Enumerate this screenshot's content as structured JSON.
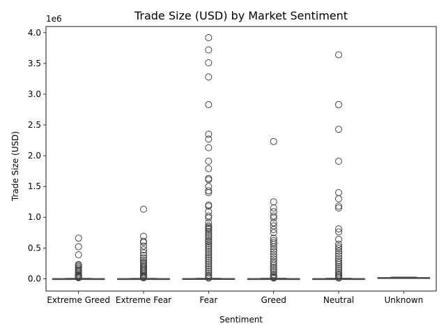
{
  "chart_data": {
    "type": "boxplot",
    "title": "Trade Size (USD) by Market Sentiment",
    "xlabel": "Sentiment",
    "ylabel": "Trade Size (USD)",
    "offset_label": "1e6",
    "ylim": [
      -0.2,
      4.1
    ],
    "yticks": [
      0.0,
      0.5,
      1.0,
      1.5,
      2.0,
      2.5,
      3.0,
      3.5,
      4.0
    ],
    "ytick_labels": [
      "0.0",
      "0.5",
      "1.0",
      "1.5",
      "2.0",
      "2.5",
      "3.0",
      "3.5",
      "4.0"
    ],
    "unit_scale": 1000000,
    "box_color": "#5b9bd5",
    "categories": [
      "Extreme Greed",
      "Extreme Fear",
      "Fear",
      "Greed",
      "Neutral",
      "Unknown"
    ],
    "boxes": [
      {
        "category": "Extreme Greed",
        "q1": 0.0,
        "median": 0.001,
        "q3": 0.003,
        "whisker_low": 0.0,
        "whisker_high": 0.007,
        "outliers": [
          0.66,
          0.52,
          0.39,
          0.23,
          0.22,
          0.2,
          0.18,
          0.16,
          0.14,
          0.12,
          0.1,
          0.08,
          0.06,
          0.05,
          0.04,
          0.03,
          0.02,
          0.015
        ]
      },
      {
        "category": "Extreme Fear",
        "q1": 0.0,
        "median": 0.001,
        "q3": 0.003,
        "whisker_low": 0.0,
        "whisker_high": 0.007,
        "outliers": [
          1.13,
          0.69,
          0.61,
          0.59,
          0.53,
          0.47,
          0.42,
          0.38,
          0.34,
          0.3,
          0.27,
          0.25,
          0.23,
          0.21,
          0.19,
          0.17,
          0.15,
          0.13,
          0.11,
          0.09,
          0.07,
          0.05,
          0.04,
          0.03,
          0.02,
          0.015
        ]
      },
      {
        "category": "Fear",
        "q1": 0.0,
        "median": 0.001,
        "q3": 0.004,
        "whisker_low": 0.0,
        "whisker_high": 0.009,
        "outliers": [
          3.92,
          3.72,
          3.51,
          3.28,
          2.83,
          2.35,
          2.27,
          2.13,
          1.91,
          1.79,
          1.63,
          1.61,
          1.5,
          1.43,
          1.4,
          1.2,
          1.18,
          1.09,
          1.02,
          0.99,
          0.91,
          0.86,
          0.84,
          0.82,
          0.8,
          0.77,
          0.74,
          0.71,
          0.68,
          0.65,
          0.62,
          0.6,
          0.57,
          0.54,
          0.51,
          0.48,
          0.45,
          0.42,
          0.39,
          0.36,
          0.33,
          0.3,
          0.27,
          0.24,
          0.21,
          0.18,
          0.15,
          0.12,
          0.09,
          0.06,
          0.04,
          0.02,
          0.012
        ]
      },
      {
        "category": "Greed",
        "q1": 0.0,
        "median": 0.001,
        "q3": 0.003,
        "whisker_low": 0.0,
        "whisker_high": 0.008,
        "outliers": [
          2.23,
          1.25,
          1.15,
          1.09,
          1.02,
          0.99,
          0.91,
          0.86,
          0.8,
          0.75,
          0.66,
          0.62,
          0.59,
          0.56,
          0.52,
          0.48,
          0.44,
          0.4,
          0.36,
          0.32,
          0.28,
          0.25,
          0.22,
          0.19,
          0.16,
          0.13,
          0.1,
          0.07,
          0.05,
          0.03,
          0.02,
          0.012
        ]
      },
      {
        "category": "Neutral",
        "q1": 0.0,
        "median": 0.001,
        "q3": 0.003,
        "whisker_low": 0.0,
        "whisker_high": 0.008,
        "outliers": [
          3.64,
          2.83,
          2.43,
          1.91,
          1.4,
          1.3,
          1.18,
          1.15,
          0.81,
          0.76,
          0.64,
          0.56,
          0.52,
          0.49,
          0.45,
          0.41,
          0.37,
          0.33,
          0.29,
          0.26,
          0.23,
          0.2,
          0.17,
          0.14,
          0.11,
          0.08,
          0.06,
          0.04,
          0.02,
          0.012
        ]
      },
      {
        "category": "Unknown",
        "q1": 0.01,
        "median": 0.014,
        "q3": 0.02,
        "whisker_low": 0.005,
        "whisker_high": 0.027,
        "outliers": []
      }
    ],
    "grid": false,
    "legend": "none"
  }
}
